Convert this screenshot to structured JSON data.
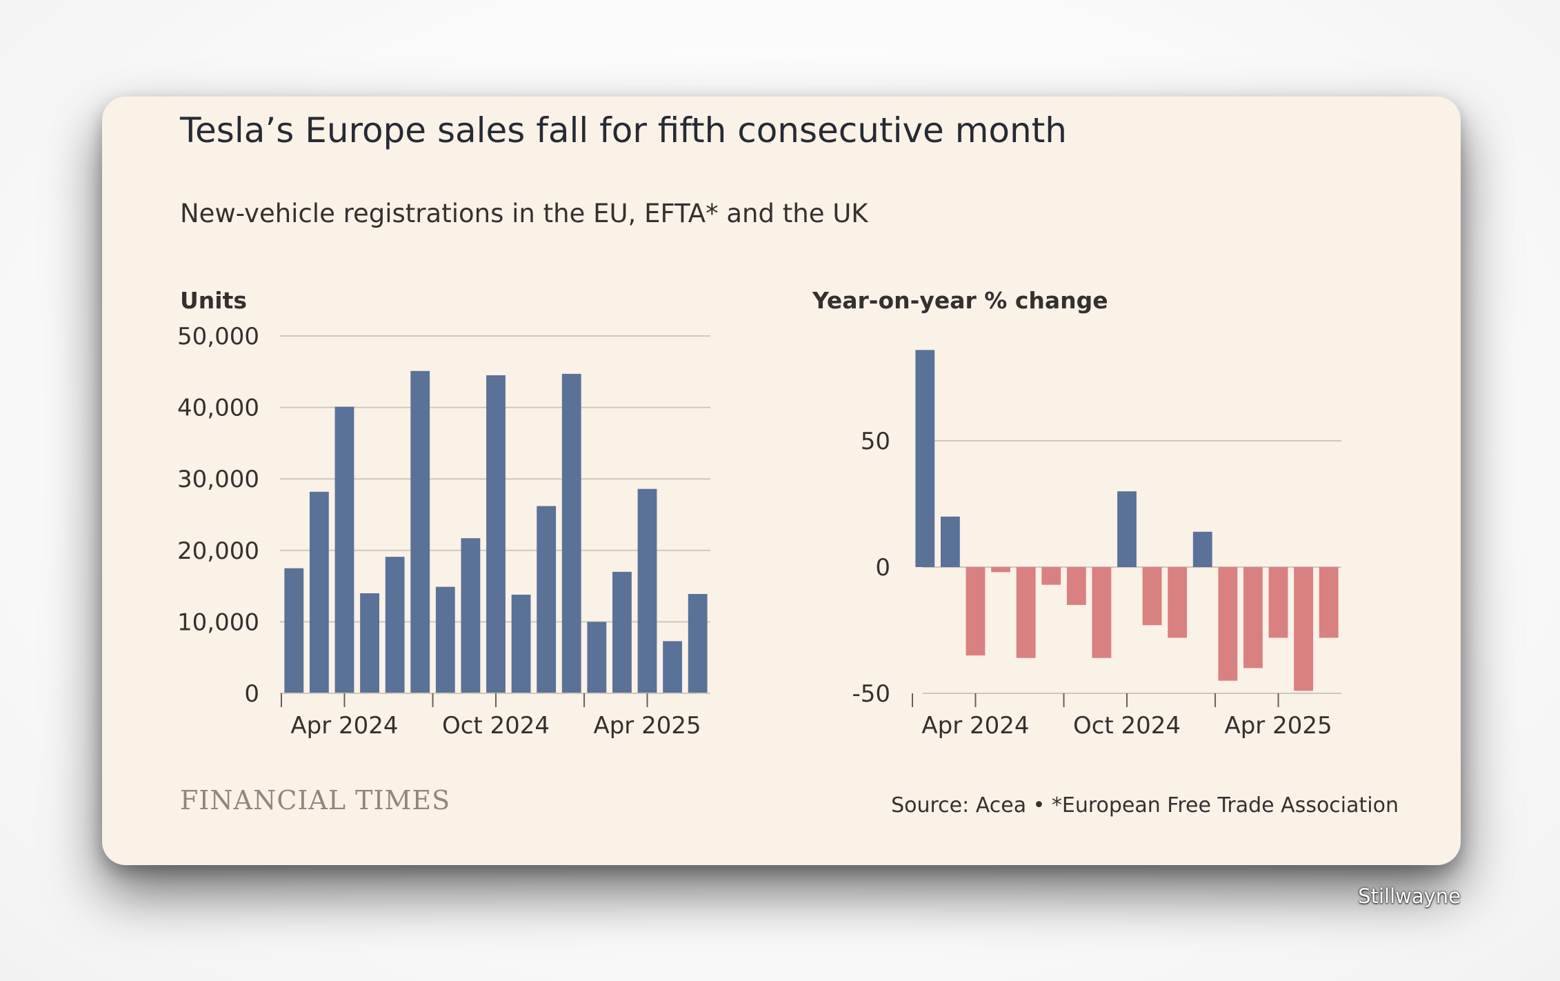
{
  "title": "Tesla’s Europe sales fall for fifth consecutive month",
  "subtitle": "New-vehicle registrations in the EU, EFTA* and the UK",
  "source": "Source: Acea • *European Free Trade Association",
  "logo": "FINANCIAL TIMES",
  "watermark": "Stillwayne",
  "colors": {
    "positive": "#5a7198",
    "negative": "#d98080",
    "gridline": "#cfc6bd",
    "background": "#faf1e7"
  },
  "chart_data": [
    {
      "type": "bar",
      "ylabel": "Units",
      "categories": [
        "Feb 2024",
        "Mar 2024",
        "Apr 2024",
        "May 2024",
        "Jun 2024",
        "Jul 2024",
        "Aug 2024",
        "Sep 2024",
        "Oct 2024",
        "Nov 2024",
        "Dec 2024",
        "Jan 2025",
        "Feb 2025",
        "Mar 2025",
        "Apr 2025",
        "May 2025",
        "Jun 2025"
      ],
      "values": [
        17500,
        28200,
        40100,
        14000,
        19100,
        45100,
        14900,
        21700,
        44500,
        13800,
        26200,
        44700,
        10000,
        17000,
        28600,
        7300,
        13900
      ],
      "ylim": [
        0,
        50000
      ],
      "yticks": [
        0,
        10000,
        20000,
        30000,
        40000,
        50000
      ],
      "ytick_labels": [
        "0",
        "10,000",
        "20,000",
        "30,000",
        "40,000",
        "50,000"
      ],
      "xtick_labels": [
        "Apr 2024",
        "Oct 2024",
        "Apr 2025"
      ],
      "grid": true
    },
    {
      "type": "bar",
      "ylabel": "Year-on-year % change",
      "categories": [
        "Feb 2024",
        "Mar 2024",
        "Apr 2024",
        "May 2024",
        "Jun 2024",
        "Jul 2024",
        "Aug 2024",
        "Sep 2024",
        "Oct 2024",
        "Nov 2024",
        "Dec 2024",
        "Jan 2025",
        "Feb 2025",
        "Mar 2025",
        "Apr 2025",
        "May 2025",
        "Jun 2025"
      ],
      "values": [
        86,
        20,
        -35,
        -2,
        -36,
        -7,
        -15,
        -36,
        30,
        -23,
        -28,
        14,
        -45,
        -40,
        -28,
        -49,
        -28
      ],
      "ylim": [
        -50,
        88
      ],
      "yticks": [
        -50,
        0,
        50
      ],
      "ytick_labels": [
        "-50",
        "0",
        "50"
      ],
      "xtick_labels": [
        "Apr 2024",
        "Oct 2024",
        "Apr 2025"
      ],
      "grid": true
    }
  ]
}
